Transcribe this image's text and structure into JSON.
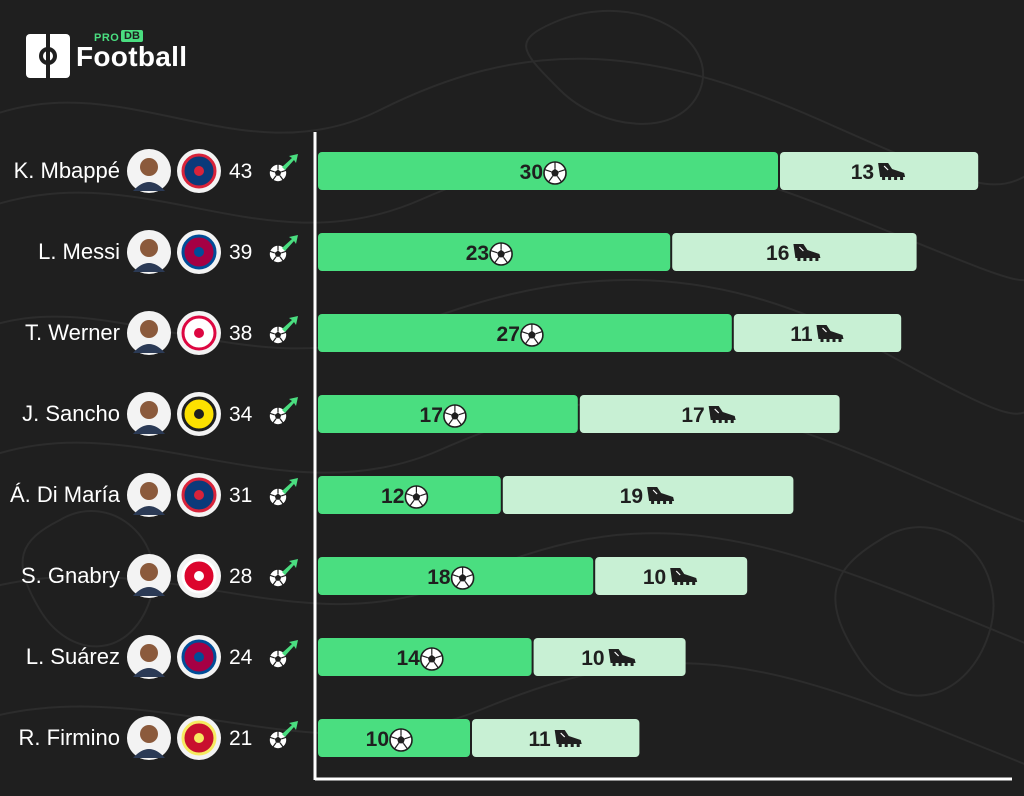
{
  "brand": {
    "pro": "PRO",
    "db": "DB",
    "word": "Football"
  },
  "colors": {
    "background": "#1f1f1f",
    "goals": "#4ade80",
    "assists": "#c8f0d4",
    "axis": "#ffffff",
    "text": "#ffffff",
    "bar_text": "#1f1f1f"
  },
  "chart_data": {
    "type": "bar",
    "orientation": "horizontal",
    "stacked": true,
    "title": "",
    "xlabel": "",
    "ylabel": "",
    "xlim": [
      0,
      53
    ],
    "grid": false,
    "categories": [
      "K. Mbappé",
      "L. Messi",
      "T. Werner",
      "J. Sancho",
      "Á. Di María",
      "S. Gnabry",
      "L. Suárez",
      "R. Firmino"
    ],
    "clubs": [
      "PSG",
      "FC Barcelona",
      "RB Leipzig",
      "Borussia Dortmund",
      "PSG",
      "FC Bayern München",
      "FC Barcelona",
      "Liverpool FC"
    ],
    "totals": [
      43,
      39,
      38,
      34,
      31,
      28,
      24,
      21
    ],
    "series": [
      {
        "key": "goals",
        "icon": "football-icon",
        "values": [
          30,
          23,
          27,
          17,
          12,
          18,
          14,
          10
        ]
      },
      {
        "key": "assists",
        "icon": "boot-icon",
        "values": [
          13,
          16,
          11,
          17,
          19,
          10,
          10,
          11
        ]
      }
    ]
  }
}
